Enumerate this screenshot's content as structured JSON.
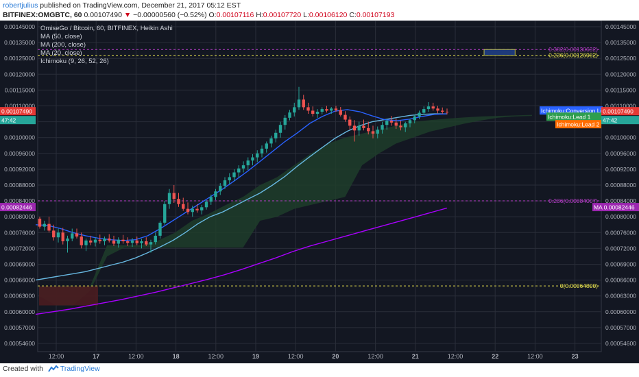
{
  "header": {
    "author": "robertjulius",
    "published": "published on TradingView.com, December 21, 2017 05:12 EST",
    "symbol": "BITFINEX:OMGBTC, 60",
    "last": "0.00107490",
    "change": "−0.00000560 (−0.52%)",
    "o_label": "O:",
    "o_value": "0.00107116",
    "h_label": "H:",
    "h_value": "0.00107720",
    "l_label": "L:",
    "l_value": "0.00106120",
    "c_label": "C:",
    "c_value": "0.00107193"
  },
  "footer": {
    "created_with": "Created with",
    "brand": "TradingView"
  },
  "colors": {
    "bg": "#131722",
    "grid": "#2a2e39",
    "text": "#b2b5be",
    "up": "#26a69a",
    "down": "#ef5350",
    "ma50": "#2962ff",
    "ma200": "#aa00ff",
    "ma20": "#67b7e0",
    "fib": "#e5e04d",
    "fib_pink": "#b43dc6",
    "kumo_green": "#1f3d2a",
    "kumo_red": "#4a1c20",
    "label_red": "#e53935",
    "label_green": "#2e9e4f",
    "label_purple": "#9c27b0",
    "label_blue": "#2962ff",
    "label_orange": "#ff6d00",
    "label_teal": "#26a69a"
  },
  "legend": [
    "OmiseGo / Bitcoin, 60, BITFINEX, Heikin Ashi",
    "MA (50, close)",
    "MA (200, close)",
    "MA (20, close)",
    "Ichimoku (9, 26, 52, 26)"
  ],
  "chart_data": {
    "type": "candlestick",
    "y_ticks": [
      "0.00145000",
      "0.00135000",
      "0.00125000",
      "0.00120000",
      "0.00115000",
      "0.00110000",
      "0.00104000",
      "0.00100000",
      "0.00096000",
      "0.00092000",
      "0.00088000",
      "0.00084000",
      "0.00080000",
      "0.00076000",
      "0.00072000",
      "0.00069000",
      "0.00066000",
      "0.00063000",
      "0.00060000",
      "0.00057000",
      "0.00054600"
    ],
    "x_ticks": [
      "12:00",
      "17",
      "12:00",
      "18",
      "12:00",
      "19",
      "12:00",
      "20",
      "12:00",
      "21",
      "12:00",
      "22",
      "12:00",
      "23"
    ],
    "current_price_label": "0.00107490",
    "countdown_label": "47:42",
    "ma200_label": "0.00082446",
    "right_labels": [
      {
        "text": "Ichimoku:Conversion Line",
        "value": "0.00107...",
        "color": "blue"
      },
      {
        "text": "Ichimoku:Lead 1",
        "value": "0.00107490",
        "color": "green"
      },
      {
        "text": "Ichimoku:Lead 2",
        "value": "0.00...",
        "color": "orange"
      },
      {
        "text": "MA",
        "value": "0.00082446",
        "color": "purple"
      }
    ],
    "fib_levels": [
      {
        "label": "0.382(0.00130632)",
        "value": 0.00130632,
        "color": "pink"
      },
      {
        "label": "0.236(0.00126982)",
        "value": 0.00126982,
        "color": "yellow"
      },
      {
        "label": "0.236(0.00084007)",
        "value": 0.00084007,
        "color": "pink"
      },
      {
        "label": "0(0.00064890)",
        "value": 0.0006489,
        "color": "yellow"
      }
    ],
    "target_box": {
      "x_from": 0.792,
      "x_to": 0.847,
      "y_from": 0.00126982,
      "y_to": 0.00130632
    },
    "candles": [
      [
        0.000795,
        0.0008,
        0.00077,
        0.000775
      ],
      [
        0.000775,
        0.00079,
        0.000765,
        0.000782
      ],
      [
        0.000782,
        0.0008,
        0.00076,
        0.000765
      ],
      [
        0.000765,
        0.00078,
        0.00074,
        0.000748
      ],
      [
        0.000748,
        0.00077,
        0.000735,
        0.00076
      ],
      [
        0.00076,
        0.000772,
        0.00073,
        0.000738
      ],
      [
        0.000738,
        0.000752,
        0.000712,
        0.000745
      ],
      [
        0.000745,
        0.00077,
        0.000738,
        0.000758
      ],
      [
        0.000758,
        0.00077,
        0.000745,
        0.00075
      ],
      [
        0.00075,
        0.00076,
        0.00072,
        0.000728
      ],
      [
        0.000728,
        0.000745,
        0.000715,
        0.00074
      ],
      [
        0.00074,
        0.000752,
        0.000728,
        0.000735
      ],
      [
        0.000735,
        0.000748,
        0.000725,
        0.000742
      ],
      [
        0.000742,
        0.000755,
        0.000732,
        0.000738
      ],
      [
        0.000738,
        0.00075,
        0.000728,
        0.000745
      ],
      [
        0.000745,
        0.000756,
        0.000735,
        0.00074
      ],
      [
        0.00074,
        0.000752,
        0.000726,
        0.000732
      ],
      [
        0.000732,
        0.000748,
        0.000722,
        0.000742
      ],
      [
        0.000742,
        0.000754,
        0.000732,
        0.000738
      ],
      [
        0.000738,
        0.000748,
        0.000726,
        0.000734
      ],
      [
        0.000734,
        0.000746,
        0.000724,
        0.00074
      ],
      [
        0.00074,
        0.00075,
        0.000728,
        0.000733
      ],
      [
        0.000733,
        0.000744,
        0.00072,
        0.000738
      ],
      [
        0.000738,
        0.000748,
        0.000726,
        0.00073
      ],
      [
        0.00073,
        0.000742,
        0.000712,
        0.000736
      ],
      [
        0.000736,
        0.00076,
        0.00073,
        0.000752
      ],
      [
        0.000752,
        0.00079,
        0.000745,
        0.000785
      ],
      [
        0.000785,
        0.00084,
        0.00078,
        0.000832
      ],
      [
        0.000832,
        0.00087,
        0.00082,
        0.00086
      ],
      [
        0.00086,
        0.00088,
        0.000835,
        0.000845
      ],
      [
        0.000845,
        0.00086,
        0.000825,
        0.000832
      ],
      [
        0.000832,
        0.000848,
        0.000815,
        0.00082
      ],
      [
        0.00082,
        0.000836,
        0.000806,
        0.000812
      ],
      [
        0.000812,
        0.000828,
        0.0008,
        0.00082
      ],
      [
        0.00082,
        0.000832,
        0.00081,
        0.000816
      ],
      [
        0.000816,
        0.00083,
        0.000806,
        0.000824
      ],
      [
        0.000824,
        0.000842,
        0.000818,
        0.000838
      ],
      [
        0.000838,
        0.000856,
        0.00083,
        0.00085
      ],
      [
        0.00085,
        0.00087,
        0.000842,
        0.000864
      ],
      [
        0.000864,
        0.000885,
        0.000855,
        0.000878
      ],
      [
        0.000878,
        0.0009,
        0.00087,
        0.000892
      ],
      [
        0.000892,
        0.00091,
        0.000882,
        0.0009
      ],
      [
        0.0009,
        0.00092,
        0.00089,
        0.000912
      ],
      [
        0.000912,
        0.00093,
        0.0009,
        0.000922
      ],
      [
        0.000922,
        0.00094,
        0.000912,
        0.00093
      ],
      [
        0.00093,
        0.00095,
        0.000918,
        0.000942
      ],
      [
        0.000942,
        0.000958,
        0.00093,
        0.00095
      ],
      [
        0.00095,
        0.000968,
        0.000938,
        0.00096
      ],
      [
        0.00096,
        0.00098,
        0.00095,
        0.000972
      ],
      [
        0.000972,
        0.00099,
        0.000962,
        0.000985
      ],
      [
        0.000985,
        0.001005,
        0.000975,
        0.000998
      ],
      [
        0.000998,
        0.00102,
        0.000988,
        0.001012
      ],
      [
        0.001012,
        0.00104,
        0.001,
        0.001032
      ],
      [
        0.001032,
        0.001065,
        0.00102,
        0.001055
      ],
      [
        0.001055,
        0.001085,
        0.001045,
        0.001075
      ],
      [
        0.001075,
        0.00111,
        0.00106,
        0.001095
      ],
      [
        0.001095,
        0.00116,
        0.001085,
        0.00112
      ],
      [
        0.00112,
        0.001135,
        0.001085,
        0.001095
      ],
      [
        0.001095,
        0.00111,
        0.00107,
        0.001082
      ],
      [
        0.001082,
        0.001098,
        0.00106,
        0.00107
      ],
      [
        0.00107,
        0.001088,
        0.001055,
        0.001078
      ],
      [
        0.001078,
        0.001095,
        0.001068,
        0.001088
      ],
      [
        0.001088,
        0.0011,
        0.001075,
        0.001082
      ],
      [
        0.001082,
        0.001096,
        0.00107,
        0.00109
      ],
      [
        0.00109,
        0.0011,
        0.001078,
        0.001084
      ],
      [
        0.001084,
        0.001096,
        0.00106,
        0.001066
      ],
      [
        0.001066,
        0.00108,
        0.00104,
        0.001048
      ],
      [
        0.001048,
        0.00106,
        0.00102,
        0.00103
      ],
      [
        0.00103,
        0.001046,
        0.00099,
        0.001018
      ],
      [
        0.001018,
        0.00104,
        0.001005,
        0.00103
      ],
      [
        0.00103,
        0.001048,
        0.001018,
        0.001024
      ],
      [
        0.001024,
        0.00104,
        0.001008,
        0.001016
      ],
      [
        0.001016,
        0.00103,
        0.000998,
        0.00101
      ],
      [
        0.00101,
        0.001028,
        0.000998,
        0.00102
      ],
      [
        0.00102,
        0.00104,
        0.00101,
        0.001032
      ],
      [
        0.001032,
        0.00105,
        0.00102,
        0.001044
      ],
      [
        0.001044,
        0.001062,
        0.00103,
        0.001038
      ],
      [
        0.001038,
        0.001052,
        0.001022,
        0.00103
      ],
      [
        0.00103,
        0.001044,
        0.001018,
        0.001026
      ],
      [
        0.001026,
        0.00104,
        0.001014,
        0.001036
      ],
      [
        0.001036,
        0.001052,
        0.001026,
        0.001046
      ],
      [
        0.001046,
        0.001068,
        0.001036,
        0.00106
      ],
      [
        0.00106,
        0.001082,
        0.00105,
        0.001074
      ],
      [
        0.001074,
        0.001098,
        0.001066,
        0.001088
      ],
      [
        0.001088,
        0.001112,
        0.001078,
        0.001098
      ],
      [
        0.001098,
        0.00111,
        0.001082,
        0.00109
      ],
      [
        0.00109,
        0.0011,
        0.001072,
        0.001082
      ],
      [
        0.001082,
        0.001094,
        0.00107,
        0.001078
      ],
      [
        0.001078,
        0.00109,
        0.001068,
        0.001076
      ]
    ],
    "ma20": [
      0.00066,
      0.000664,
      0.000668,
      0.000672,
      0.000676,
      0.000682,
      0.000688,
      0.000694,
      0.000702,
      0.000712,
      0.000724,
      0.00074,
      0.00076,
      0.000782,
      0.0008,
      0.000812,
      0.000828,
      0.000844,
      0.00086,
      0.00088,
      0.000902,
      0.000928,
      0.000952,
      0.000975,
      0.000998,
      0.001016,
      0.00103,
      0.00104,
      0.001048,
      0.001056,
      0.001064,
      0.001068,
      0.00107,
      0.00107
    ],
    "ma50": [
      0.00078,
      0.000778,
      0.00077,
      0.00076,
      0.000752,
      0.000746,
      0.000742,
      0.00074,
      0.000742,
      0.000752,
      0.00077,
      0.00079,
      0.00081,
      0.00083,
      0.00085,
      0.00087,
      0.000892,
      0.000915,
      0.00094,
      0.000965,
      0.00099,
      0.001012,
      0.001036,
      0.00106,
      0.00108,
      0.001086,
      0.001078,
      0.001062,
      0.001048,
      0.001044,
      0.00105,
      0.00106,
      0.001068,
      0.00107
    ],
    "ma200": [
      0.000595,
      0.0006,
      0.000605,
      0.000611,
      0.000617,
      0.000623,
      0.00063,
      0.000637,
      0.000645,
      0.000653,
      0.000661,
      0.00067,
      0.00068,
      0.000691,
      0.000702,
      0.000714,
      0.000726,
      0.000738,
      0.00075,
      0.000762,
      0.000774,
      0.000786,
      0.000798,
      0.00081,
      0.000822
    ]
  }
}
